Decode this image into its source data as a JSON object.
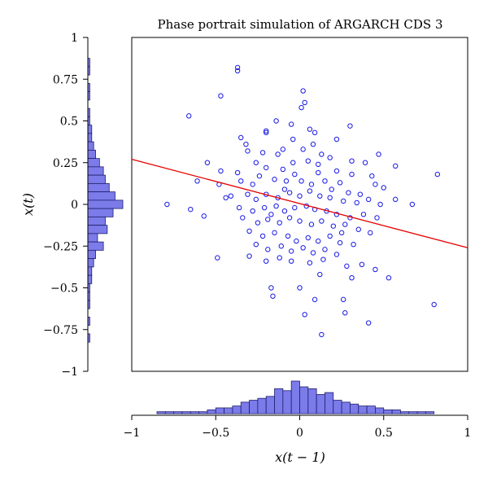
{
  "chart_data": {
    "type": "scatter",
    "title": "Phase portrait simulation of ARGARCH CDS 3",
    "xlabel": "x(t − 1)",
    "ylabel": "x(t)",
    "xlim": [
      -1,
      1
    ],
    "ylim": [
      -1,
      1
    ],
    "xticks": [
      -1,
      -0.5,
      0,
      0.5,
      1
    ],
    "xtick_labels": [
      "−1",
      "−0.5",
      "0",
      "0.5",
      "1"
    ],
    "yticks": [
      1,
      0.75,
      0.5,
      0.25,
      0,
      -0.25,
      -0.5,
      -0.75,
      -1
    ],
    "ytick_labels": [
      "1",
      "0.75",
      "0.5",
      "0.25",
      "0",
      "−0.25",
      "−0.5",
      "−0.75",
      "−1"
    ],
    "grid": false,
    "colors": {
      "points": "#1a1ae6",
      "fit_line": "#e60000",
      "hist_fill": "#7b7bea",
      "hist_edge": "#1f1f6e"
    },
    "fit_line": {
      "x": [
        -1,
        1
      ],
      "y": [
        0.27,
        -0.26
      ]
    },
    "points": [
      [
        -0.37,
        0.82
      ],
      [
        -0.37,
        0.8
      ],
      [
        -0.47,
        0.65
      ],
      [
        -0.66,
        0.53
      ],
      [
        0.02,
        0.68
      ],
      [
        0.03,
        0.61
      ],
      [
        0.01,
        0.58
      ],
      [
        -0.14,
        0.5
      ],
      [
        -0.2,
        0.44
      ],
      [
        -0.05,
        0.48
      ],
      [
        0.06,
        0.45
      ],
      [
        0.09,
        0.43
      ],
      [
        0.3,
        0.47
      ],
      [
        0.22,
        0.39
      ],
      [
        -0.35,
        0.4
      ],
      [
        -0.32,
        0.36
      ],
      [
        -0.2,
        0.43
      ],
      [
        -0.04,
        0.39
      ],
      [
        -0.1,
        0.33
      ],
      [
        0.08,
        0.36
      ],
      [
        0.13,
        0.3
      ],
      [
        0.18,
        0.28
      ],
      [
        0.31,
        0.26
      ],
      [
        0.39,
        0.25
      ],
      [
        0.47,
        0.3
      ],
      [
        0.57,
        0.23
      ],
      [
        -0.31,
        0.32
      ],
      [
        -0.22,
        0.31
      ],
      [
        -0.13,
        0.3
      ],
      [
        0.02,
        0.33
      ],
      [
        0.05,
        0.26
      ],
      [
        -0.37,
        0.19
      ],
      [
        -0.47,
        0.2
      ],
      [
        -0.55,
        0.25
      ],
      [
        -0.61,
        0.14
      ],
      [
        -0.79,
        0.0
      ],
      [
        -0.65,
        -0.03
      ],
      [
        -0.57,
        -0.07
      ],
      [
        -0.2,
        0.22
      ],
      [
        -0.1,
        0.21
      ],
      [
        -0.03,
        0.18
      ],
      [
        0.11,
        0.19
      ],
      [
        0.22,
        0.2
      ],
      [
        0.31,
        0.18
      ],
      [
        0.43,
        0.17
      ],
      [
        0.45,
        0.12
      ],
      [
        0.82,
        0.18
      ],
      [
        0.5,
        0.1
      ],
      [
        -0.35,
        0.14
      ],
      [
        -0.28,
        0.12
      ],
      [
        -0.24,
        0.17
      ],
      [
        -0.15,
        0.15
      ],
      [
        -0.08,
        0.14
      ],
      [
        0.01,
        0.14
      ],
      [
        0.07,
        0.12
      ],
      [
        0.15,
        0.14
      ],
      [
        0.24,
        0.13
      ],
      [
        0.29,
        0.07
      ],
      [
        0.36,
        0.06
      ],
      [
        -0.48,
        0.12
      ],
      [
        -0.44,
        0.04
      ],
      [
        -0.41,
        0.05
      ],
      [
        -0.31,
        0.06
      ],
      [
        -0.26,
        0.03
      ],
      [
        -0.2,
        0.06
      ],
      [
        -0.13,
        0.04
      ],
      [
        -0.06,
        0.07
      ],
      [
        0.0,
        0.05
      ],
      [
        0.06,
        0.08
      ],
      [
        0.12,
        0.05
      ],
      [
        0.18,
        0.04
      ],
      [
        0.26,
        0.02
      ],
      [
        0.34,
        0.01
      ],
      [
        0.41,
        0.03
      ],
      [
        0.48,
        0.0
      ],
      [
        0.57,
        0.03
      ],
      [
        0.67,
        0.0
      ],
      [
        -0.36,
        -0.02
      ],
      [
        -0.28,
        -0.04
      ],
      [
        -0.21,
        -0.02
      ],
      [
        -0.14,
        -0.01
      ],
      [
        -0.09,
        -0.04
      ],
      [
        -0.03,
        -0.02
      ],
      [
        0.04,
        -0.01
      ],
      [
        0.09,
        -0.03
      ],
      [
        0.16,
        -0.04
      ],
      [
        0.22,
        -0.06
      ],
      [
        0.3,
        -0.08
      ],
      [
        0.38,
        -0.06
      ],
      [
        0.46,
        -0.08
      ],
      [
        -0.34,
        -0.08
      ],
      [
        -0.25,
        -0.11
      ],
      [
        -0.19,
        -0.09
      ],
      [
        -0.12,
        -0.11
      ],
      [
        -0.06,
        -0.08
      ],
      [
        0.0,
        -0.1
      ],
      [
        0.07,
        -0.12
      ],
      [
        0.13,
        -0.1
      ],
      [
        0.2,
        -0.13
      ],
      [
        0.27,
        -0.12
      ],
      [
        0.35,
        -0.15
      ],
      [
        0.42,
        -0.17
      ],
      [
        -0.3,
        -0.16
      ],
      [
        -0.22,
        -0.19
      ],
      [
        -0.15,
        -0.17
      ],
      [
        -0.07,
        -0.19
      ],
      [
        -0.02,
        -0.22
      ],
      [
        0.05,
        -0.2
      ],
      [
        0.11,
        -0.22
      ],
      [
        0.18,
        -0.19
      ],
      [
        0.24,
        -0.23
      ],
      [
        0.32,
        -0.24
      ],
      [
        -0.26,
        -0.24
      ],
      [
        -0.19,
        -0.27
      ],
      [
        -0.11,
        -0.25
      ],
      [
        -0.05,
        -0.28
      ],
      [
        0.02,
        -0.26
      ],
      [
        0.08,
        -0.29
      ],
      [
        0.15,
        -0.27
      ],
      [
        0.22,
        -0.3
      ],
      [
        -0.49,
        -0.32
      ],
      [
        -0.3,
        -0.31
      ],
      [
        -0.2,
        -0.34
      ],
      [
        -0.12,
        -0.32
      ],
      [
        -0.05,
        -0.34
      ],
      [
        0.06,
        -0.35
      ],
      [
        0.14,
        -0.33
      ],
      [
        0.28,
        -0.37
      ],
      [
        0.37,
        -0.36
      ],
      [
        0.45,
        -0.39
      ],
      [
        0.53,
        -0.44
      ],
      [
        0.31,
        -0.44
      ],
      [
        0.12,
        -0.42
      ],
      [
        -0.17,
        -0.5
      ],
      [
        0.0,
        -0.5
      ],
      [
        -0.16,
        -0.55
      ],
      [
        0.09,
        -0.57
      ],
      [
        0.26,
        -0.57
      ],
      [
        0.27,
        -0.65
      ],
      [
        0.8,
        -0.6
      ],
      [
        0.03,
        -0.66
      ],
      [
        0.41,
        -0.71
      ],
      [
        0.13,
        -0.78
      ],
      [
        -0.04,
        0.25
      ],
      [
        0.11,
        0.24
      ],
      [
        -0.26,
        0.25
      ],
      [
        0.19,
        0.09
      ],
      [
        -0.17,
        -0.06
      ],
      [
        0.25,
        -0.17
      ],
      [
        -0.09,
        0.09
      ]
    ],
    "hist_x": {
      "bins": [
        -0.825,
        -0.775,
        -0.725,
        -0.675,
        -0.625,
        -0.575,
        -0.525,
        -0.475,
        -0.425,
        -0.375,
        -0.325,
        -0.275,
        -0.225,
        -0.175,
        -0.125,
        -0.075,
        -0.025,
        0.025,
        0.075,
        0.125,
        0.175,
        0.225,
        0.275,
        0.325,
        0.375,
        0.425,
        0.475,
        0.525,
        0.575,
        0.625,
        0.675,
        0.725,
        0.775,
        0.825
      ],
      "counts": [
        1,
        1,
        1,
        1,
        1,
        1,
        2,
        3,
        3,
        4,
        6,
        7,
        8,
        9,
        13,
        12,
        17,
        14,
        13,
        10,
        11,
        7,
        6,
        5,
        4,
        4,
        3,
        2,
        2,
        1,
        1,
        1,
        1
      ]
    },
    "hist_y": {
      "bins": [
        0.85,
        0.8,
        0.75,
        0.7,
        0.65,
        0.6,
        0.55,
        0.5,
        0.45,
        0.4,
        0.35,
        0.3,
        0.25,
        0.2,
        0.15,
        0.1,
        0.05,
        0.0,
        -0.05,
        -0.1,
        -0.15,
        -0.2,
        -0.25,
        -0.3,
        -0.35,
        -0.4,
        -0.45,
        -0.5,
        -0.55,
        -0.6,
        -0.65,
        -0.7,
        -0.75,
        -0.8
      ],
      "counts": [
        1,
        1,
        0,
        1,
        1,
        0,
        1,
        1,
        2,
        2,
        3,
        4,
        6,
        8,
        9,
        11,
        14,
        18,
        13,
        9,
        10,
        5,
        8,
        4,
        3,
        2,
        2,
        1,
        1,
        1,
        0,
        1,
        0,
        1
      ]
    }
  }
}
